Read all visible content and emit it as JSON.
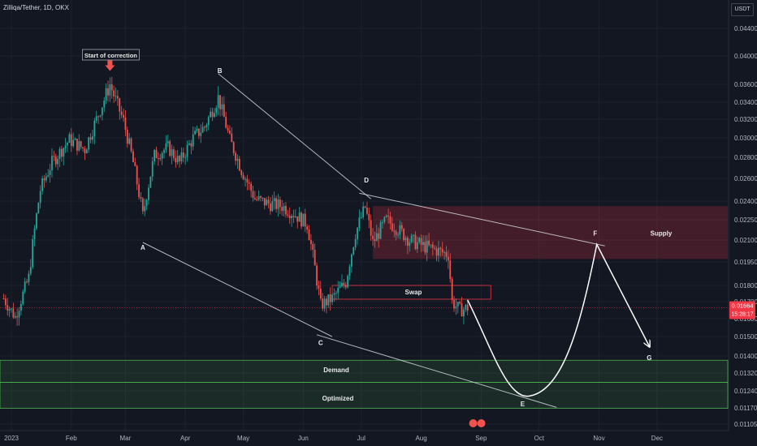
{
  "header": {
    "symbol": "Zilliqa/Tether, 1D, OKX",
    "currency_button": "USDT"
  },
  "price_badge": {
    "price": "0.01664",
    "countdown": "15:28:17",
    "color": "#f23645"
  },
  "colors": {
    "up": "#26a69a",
    "down": "#ef5350",
    "supply_zone": "#f23645",
    "demand_zone": "#4caf50",
    "trendline": "#d1d4dc",
    "swap_box": "#f23645",
    "projection": "#ffffff",
    "background": "#131722"
  },
  "annotations": {
    "start_of_correction": "Start of correction",
    "supply": "Supply",
    "swap": "Swap",
    "demand": "Demand",
    "optimized": "Optimized"
  },
  "chart_data": {
    "type": "candlestick",
    "title": "Zilliqa/Tether, 1D, OKX",
    "y_axis_label": "USDT",
    "y_ticks": [
      "0.04400",
      "0.04000",
      "0.03600",
      "0.03400",
      "0.03200",
      "0.03000",
      "0.02800",
      "0.02600",
      "0.02400",
      "0.02250",
      "0.02100",
      "0.01950",
      "0.01800",
      "0.01700",
      "0.01600",
      "0.01500",
      "0.01400",
      "0.01320",
      "0.01240",
      "0.01170",
      "0.01105"
    ],
    "x_ticks": [
      "2023",
      "Feb",
      "Mar",
      "Apr",
      "May",
      "Jun",
      "Jul",
      "Aug",
      "Sep",
      "Oct",
      "Nov",
      "Dec"
    ],
    "key_points": [
      {
        "label": "Start of correction",
        "date": "2023-02-21",
        "price": 0.0372
      },
      {
        "label": "A",
        "date": "2023-03-10",
        "price": 0.0213
      },
      {
        "label": "B",
        "date": "2023-04-18",
        "price": 0.0366
      },
      {
        "label": "C",
        "date": "2023-06-10",
        "price": 0.0153
      },
      {
        "label": "D",
        "date": "2023-07-02",
        "price": 0.025
      },
      {
        "label": "E",
        "date": "2023-09-25",
        "price": 0.0124
      },
      {
        "label": "F",
        "date": "2023-10-30",
        "price": 0.0207
      },
      {
        "label": "G",
        "date": "2023-11-27",
        "price": 0.0145
      }
    ],
    "zones": [
      {
        "name": "Supply",
        "low": 0.0197,
        "high": 0.0236
      },
      {
        "name": "Swap",
        "low": 0.01715,
        "high": 0.018
      },
      {
        "name": "Demand",
        "low": 0.01278,
        "high": 0.0138
      },
      {
        "name": "Optimized",
        "low": 0.01168,
        "high": 0.01278
      }
    ],
    "last_price": 0.01664,
    "closes": [
      {
        "date": "2022-12-28",
        "close": 0.0172
      },
      {
        "date": "2023-01-03",
        "close": 0.0161
      },
      {
        "date": "2023-01-10",
        "close": 0.0185
      },
      {
        "date": "2023-01-16",
        "close": 0.025
      },
      {
        "date": "2023-01-22",
        "close": 0.0275
      },
      {
        "date": "2023-01-31",
        "close": 0.0298
      },
      {
        "date": "2023-02-08",
        "close": 0.0288
      },
      {
        "date": "2023-02-14",
        "close": 0.032
      },
      {
        "date": "2023-02-21",
        "close": 0.036
      },
      {
        "date": "2023-02-28",
        "close": 0.0318
      },
      {
        "date": "2023-03-05",
        "close": 0.0275
      },
      {
        "date": "2023-03-10",
        "close": 0.0228
      },
      {
        "date": "2023-03-16",
        "close": 0.0282
      },
      {
        "date": "2023-03-23",
        "close": 0.029
      },
      {
        "date": "2023-03-29",
        "close": 0.0275
      },
      {
        "date": "2023-04-05",
        "close": 0.03
      },
      {
        "date": "2023-04-11",
        "close": 0.0312
      },
      {
        "date": "2023-04-18",
        "close": 0.0345
      },
      {
        "date": "2023-04-24",
        "close": 0.0298
      },
      {
        "date": "2023-04-30",
        "close": 0.0268
      },
      {
        "date": "2023-05-07",
        "close": 0.0242
      },
      {
        "date": "2023-05-14",
        "close": 0.0238
      },
      {
        "date": "2023-05-21",
        "close": 0.0236
      },
      {
        "date": "2023-05-27",
        "close": 0.023
      },
      {
        "date": "2023-06-03",
        "close": 0.0222
      },
      {
        "date": "2023-06-10",
        "close": 0.0168
      },
      {
        "date": "2023-06-16",
        "close": 0.0172
      },
      {
        "date": "2023-06-23",
        "close": 0.0182
      },
      {
        "date": "2023-06-28",
        "close": 0.0215
      },
      {
        "date": "2023-07-03",
        "close": 0.0235
      },
      {
        "date": "2023-07-07",
        "close": 0.0208
      },
      {
        "date": "2023-07-14",
        "close": 0.0225
      },
      {
        "date": "2023-07-20",
        "close": 0.0218
      },
      {
        "date": "2023-07-26",
        "close": 0.021
      },
      {
        "date": "2023-08-02",
        "close": 0.0206
      },
      {
        "date": "2023-08-09",
        "close": 0.0203
      },
      {
        "date": "2023-08-15",
        "close": 0.02
      },
      {
        "date": "2023-08-17",
        "close": 0.017
      },
      {
        "date": "2023-08-21",
        "close": 0.0165
      },
      {
        "date": "2023-08-25",
        "close": 0.01664
      }
    ]
  }
}
